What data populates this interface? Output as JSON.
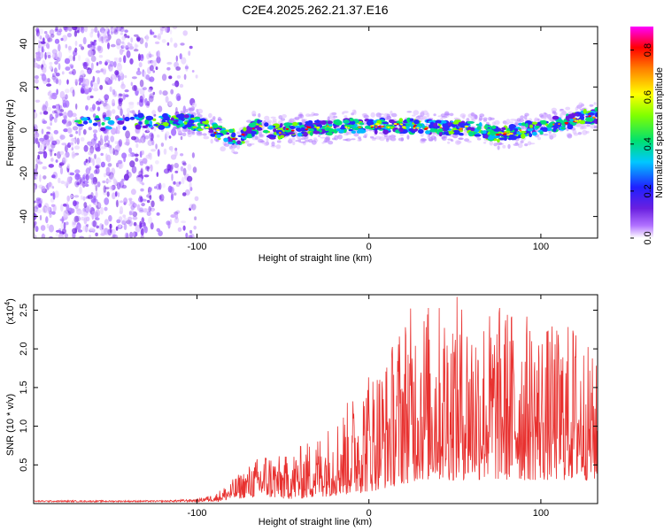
{
  "title": "C2E4.2025.262.21.37.E16",
  "chart_data": [
    {
      "type": "heatmap",
      "xlabel": "Height of straight line (km)",
      "ylabel": "Frequency (Hz)",
      "xlim": [
        -195,
        133
      ],
      "ylim": [
        -50,
        48
      ],
      "xticks": [
        -100,
        0,
        100
      ],
      "yticks": [
        -40,
        -20,
        0,
        20,
        40
      ],
      "xtick_labels": [
        "-100",
        "0",
        "100"
      ],
      "ytick_labels": [
        "-40",
        "-20",
        "0",
        "20",
        "40"
      ],
      "noise_region_x": [
        -195,
        -100
      ],
      "ridge": [
        {
          "x": -165,
          "y": 3
        },
        {
          "x": -140,
          "y": 4
        },
        {
          "x": -120,
          "y": 4
        },
        {
          "x": -105,
          "y": 4
        },
        {
          "x": -95,
          "y": 2
        },
        {
          "x": -85,
          "y": -2
        },
        {
          "x": -75,
          "y": -4
        },
        {
          "x": -65,
          "y": 2
        },
        {
          "x": -55,
          "y": -1
        },
        {
          "x": -45,
          "y": 0
        },
        {
          "x": -35,
          "y": 1
        },
        {
          "x": -25,
          "y": 1
        },
        {
          "x": -10,
          "y": 2
        },
        {
          "x": 0,
          "y": 2
        },
        {
          "x": 20,
          "y": 2
        },
        {
          "x": 40,
          "y": 1
        },
        {
          "x": 60,
          "y": 1
        },
        {
          "x": 75,
          "y": -2
        },
        {
          "x": 90,
          "y": 0
        },
        {
          "x": 110,
          "y": 3
        },
        {
          "x": 133,
          "y": 7
        }
      ],
      "colorbar": {
        "label": "Normalized spectral amplitude",
        "range": [
          0.0,
          0.9
        ],
        "ticks": [
          0.0,
          0.2,
          0.4,
          0.6,
          0.8
        ],
        "tick_labels": [
          "0.0",
          "0.2",
          "0.4",
          "0.6",
          "0.8"
        ],
        "colors": [
          "#ffffff",
          "#8a2be2",
          "#2020ff",
          "#00c8ff",
          "#00e070",
          "#80ff00",
          "#ffff00",
          "#ff8000",
          "#ff0000",
          "#ff00ff"
        ]
      }
    },
    {
      "type": "line",
      "xlabel": "Height of straight line (km)",
      "ylabel": "SNR (10 * v/v)",
      "scale_label": "(x10",
      "scale_exp": "4",
      "xlim": [
        -195,
        133
      ],
      "ylim": [
        0,
        2.7
      ],
      "xticks": [
        -100,
        0,
        100
      ],
      "yticks": [
        0.5,
        1.0,
        1.5,
        2.0,
        2.5
      ],
      "xtick_labels": [
        "-100",
        "0",
        "100"
      ],
      "ytick_labels": [
        "0.5",
        "1.0",
        "1.5",
        "2.0",
        "2.5"
      ],
      "color": "#e8312f",
      "envelope": {
        "x": [
          -195,
          -120,
          -100,
          -90,
          -80,
          -70,
          -60,
          -50,
          -40,
          -30,
          -20,
          -10,
          0,
          10,
          20,
          30,
          40,
          50,
          60,
          70,
          80,
          90,
          100,
          110,
          120,
          133
        ],
        "low": [
          0.02,
          0.02,
          0.02,
          0.02,
          0.05,
          0.08,
          0.08,
          0.06,
          0.06,
          0.08,
          0.1,
          0.12,
          0.15,
          0.2,
          0.25,
          0.3,
          0.3,
          0.3,
          0.3,
          0.3,
          0.3,
          0.3,
          0.3,
          0.3,
          0.3,
          0.3
        ],
        "high": [
          0.04,
          0.04,
          0.06,
          0.12,
          0.3,
          0.5,
          0.7,
          0.6,
          0.75,
          0.9,
          1.1,
          1.4,
          1.8,
          1.9,
          2.5,
          2.65,
          2.6,
          2.7,
          2.6,
          2.55,
          2.6,
          2.5,
          2.35,
          2.3,
          2.4,
          1.8
        ]
      }
    }
  ]
}
